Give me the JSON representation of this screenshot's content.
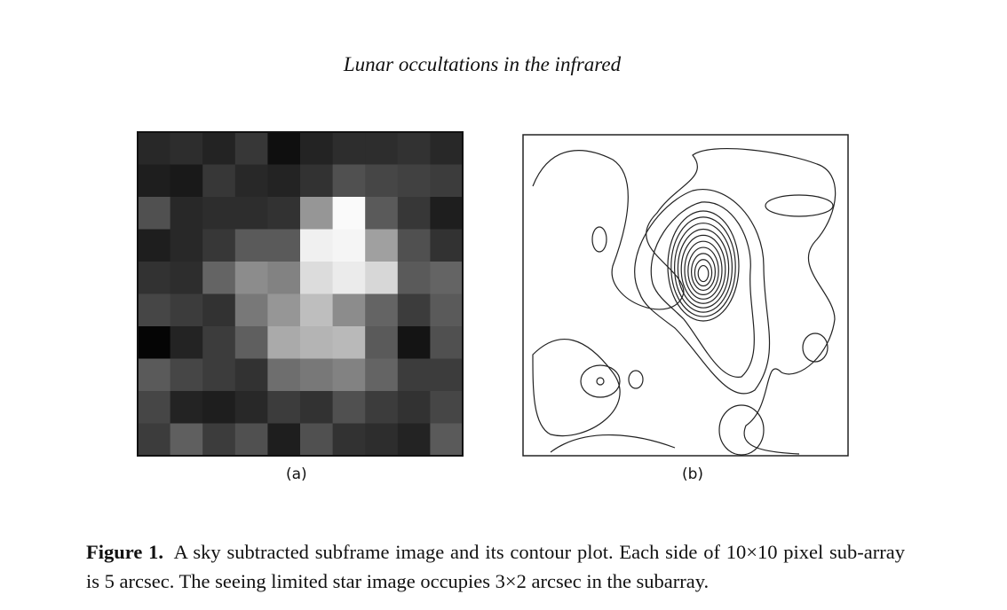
{
  "header": {
    "title": "Lunar occultations in the infrared"
  },
  "figure": {
    "panels": [
      {
        "label": "(a)"
      },
      {
        "label": "(b)"
      }
    ],
    "caption": {
      "label": "Figure 1.",
      "text": "A sky subtracted subframe image and its contour plot. Each side of 10×10 pixel sub-array is 5 arcsec. The seeing limited star image occupies 3×2 arcsec in the subarray."
    }
  }
}
